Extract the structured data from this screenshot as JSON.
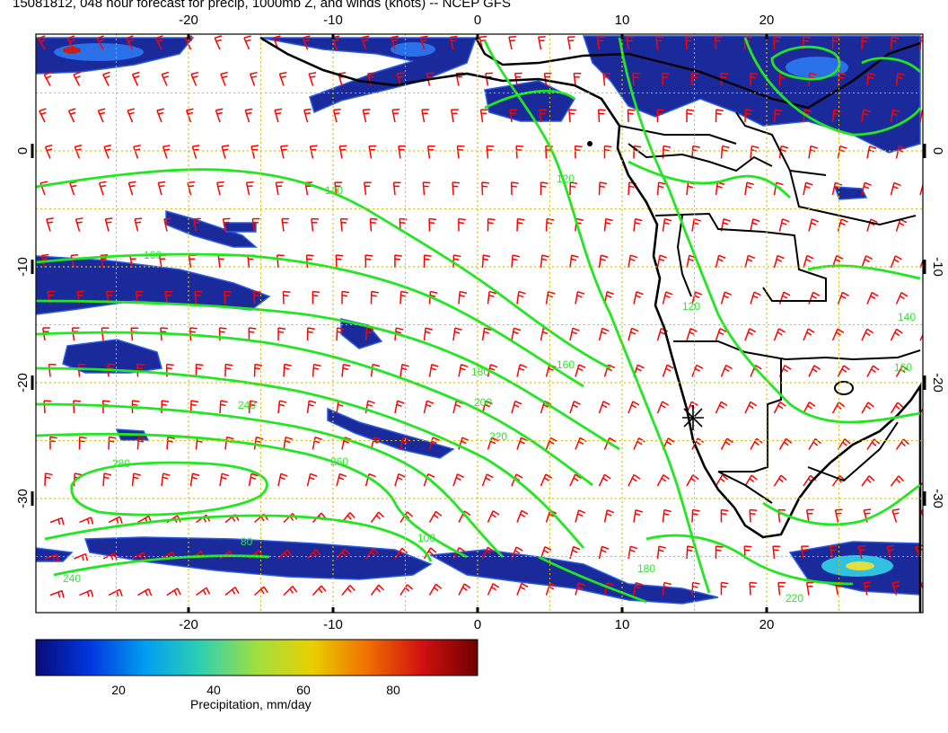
{
  "title": "15081812, 048 hour forecast for precip, 1000mb Z, and winds (knots) -- NCEP GFS",
  "lon_ticks": [
    -20,
    -10,
    0,
    10,
    20
  ],
  "lat_ticks": [
    0,
    -10,
    -20,
    -30
  ],
  "contour_labels": [
    "100",
    "140",
    "120",
    "160",
    "180",
    "200",
    "220",
    "240",
    "260",
    "280",
    "80",
    "100",
    "120",
    "140",
    "160",
    "180",
    "220",
    "240"
  ],
  "colorbar": {
    "label": "Precipitation, mm/day",
    "ticks": [
      "20",
      "40",
      "60",
      "80"
    ],
    "colors": [
      "#0a0a7a",
      "#0038e0",
      "#00a0f0",
      "#30d0b0",
      "#a0e040",
      "#e8d000",
      "#f07000",
      "#d01010",
      "#700000"
    ]
  },
  "colors": {
    "precip_dark": "#1a2a9a",
    "precip_light": "#2a5ae0",
    "contour": "#22e622",
    "wind_barb": "#ff0000",
    "grid": "#d8c000",
    "coast": "#000000"
  }
}
